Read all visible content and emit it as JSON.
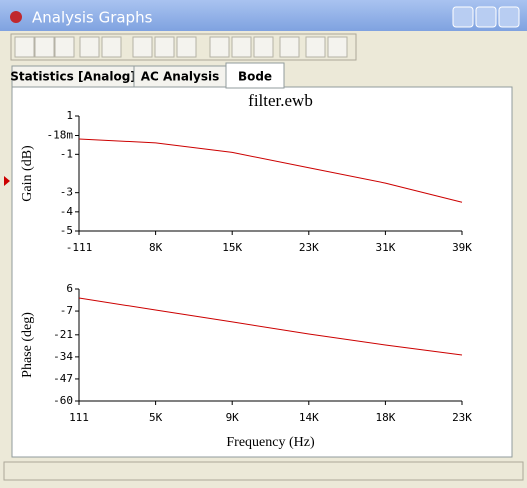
{
  "window": {
    "title": "Analysis Graphs"
  },
  "tabs": [
    "Statistics [Analog]",
    "AC Analysis",
    "Bode"
  ],
  "active_tab": 2,
  "chart_data": [
    {
      "type": "line",
      "title": "filter.ewb",
      "y_label": "Gain (dB)",
      "x": [
        -111,
        7689,
        15489,
        23289,
        31089,
        38889
      ],
      "series": [
        {
          "name": "Gain",
          "color": "#cc0000",
          "values": [
            -0.2,
            -0.4,
            -0.9,
            -1.7,
            -2.5,
            -3.5
          ]
        }
      ],
      "xlim": [
        -111,
        38889
      ],
      "xticks": [
        {
          "value": -111,
          "label": "-111"
        },
        {
          "value": 7689,
          "label": "8K"
        },
        {
          "value": 15489,
          "label": "15K"
        },
        {
          "value": 23289,
          "label": "23K"
        },
        {
          "value": 31089,
          "label": "31K"
        },
        {
          "value": 38889,
          "label": "39K"
        }
      ],
      "ylim": [
        -5,
        1
      ],
      "yticks": [
        1,
        {
          "value": -0.018,
          "label": "-18m"
        },
        -1,
        -3,
        -4,
        -5
      ]
    },
    {
      "type": "line",
      "x_label": "Frequency (Hz)",
      "y_label": "Phase (deg)",
      "x": [
        111,
        4689,
        9267,
        13845,
        18423,
        23001
      ],
      "series": [
        {
          "name": "Phase",
          "color": "#cc0000",
          "values": [
            0.7,
            -6.4,
            -13.4,
            -20.5,
            -27,
            -32.9
          ]
        }
      ],
      "xlim": [
        111,
        23001
      ],
      "xticks": [
        111,
        {
          "value": 4689,
          "label": "5K"
        },
        {
          "value": 9267,
          "label": "9K"
        },
        {
          "value": 13845,
          "label": "14K"
        },
        {
          "value": 18423,
          "label": "18K"
        },
        {
          "value": 23001,
          "label": "23K"
        }
      ],
      "ylim": [
        -60,
        6
      ],
      "yticks": [
        6,
        -7,
        -21,
        -34,
        -47,
        -60
      ]
    }
  ]
}
